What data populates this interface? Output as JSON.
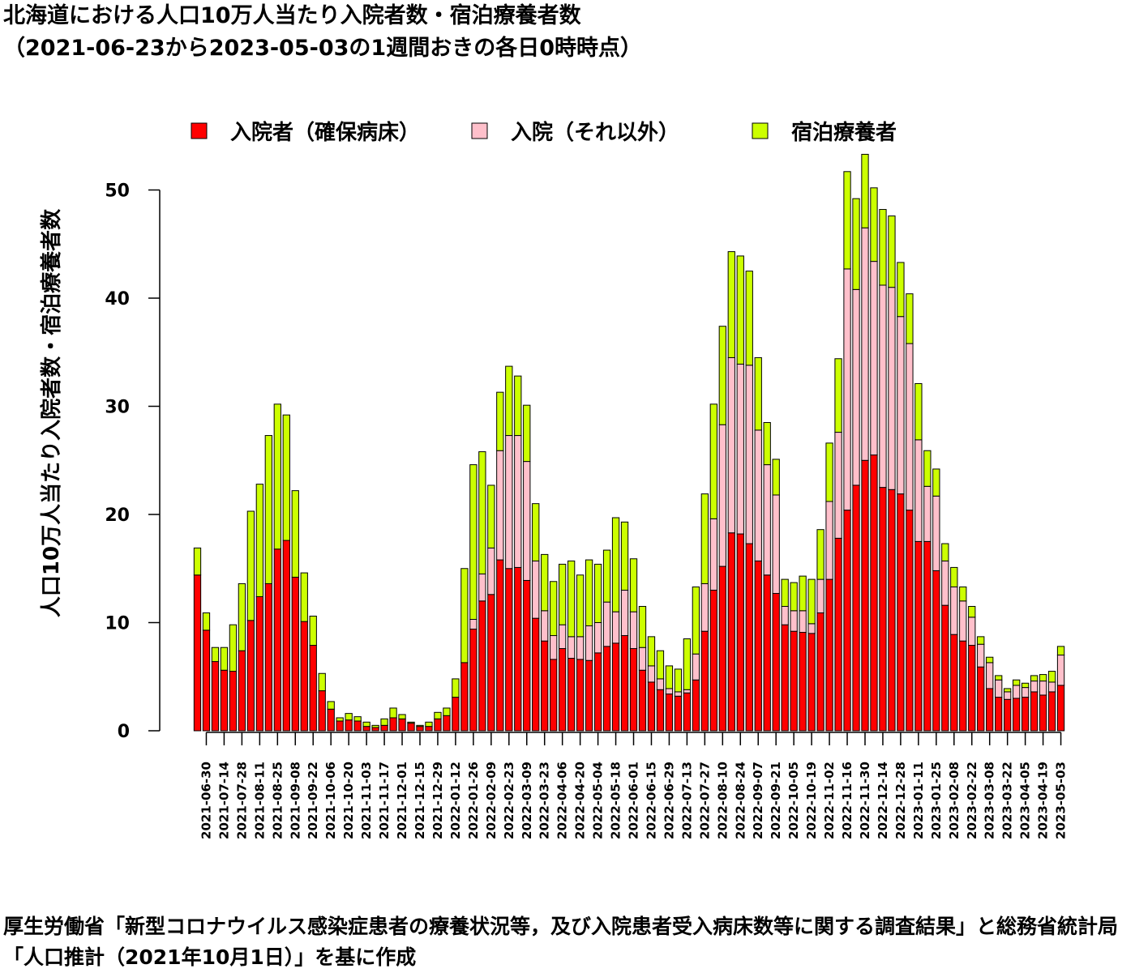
{
  "title_line1": "北海道における人口10万人当たり入院者数・宿泊療養者数",
  "title_line2": "（2021-06-23から2023-05-03の1週間おきの各日0時時点）",
  "caption": "厚生労働省「新型コロナウイルス感染症患者の療養状況等，及び入院患者受入病床数等に関する調査結果」と総務省統計局「人口推計（2021年10月1日）」を基に作成",
  "chart_data": {
    "type": "bar",
    "stacked": true,
    "title": "北海道における人口10万人当たり入院者数・宿泊療養者数",
    "ylabel": "人口10万人当たり入院者数・宿泊療養者数",
    "ylim": [
      0,
      53
    ],
    "yticks": [
      0,
      10,
      20,
      30,
      40,
      50
    ],
    "legend_position": "top",
    "categories": [
      "2021-06-23",
      "2021-06-30",
      "2021-07-07",
      "2021-07-14",
      "2021-07-21",
      "2021-07-28",
      "2021-08-04",
      "2021-08-11",
      "2021-08-18",
      "2021-08-25",
      "2021-09-01",
      "2021-09-08",
      "2021-09-15",
      "2021-09-22",
      "2021-09-29",
      "2021-10-06",
      "2021-10-13",
      "2021-10-20",
      "2021-10-27",
      "2021-11-03",
      "2021-11-10",
      "2021-11-17",
      "2021-11-24",
      "2021-12-01",
      "2021-12-08",
      "2021-12-15",
      "2021-12-22",
      "2021-12-29",
      "2022-01-05",
      "2022-01-12",
      "2022-01-19",
      "2022-01-26",
      "2022-02-02",
      "2022-02-09",
      "2022-02-16",
      "2022-02-23",
      "2022-03-02",
      "2022-03-09",
      "2022-03-16",
      "2022-03-23",
      "2022-03-30",
      "2022-04-06",
      "2022-04-13",
      "2022-04-20",
      "2022-04-27",
      "2022-05-04",
      "2022-05-11",
      "2022-05-18",
      "2022-05-25",
      "2022-06-01",
      "2022-06-08",
      "2022-06-15",
      "2022-06-22",
      "2022-06-29",
      "2022-07-06",
      "2022-07-13",
      "2022-07-20",
      "2022-07-27",
      "2022-08-03",
      "2022-08-10",
      "2022-08-17",
      "2022-08-24",
      "2022-08-31",
      "2022-09-07",
      "2022-09-14",
      "2022-09-21",
      "2022-09-28",
      "2022-10-05",
      "2022-10-12",
      "2022-10-19",
      "2022-10-26",
      "2022-11-02",
      "2022-11-09",
      "2022-11-16",
      "2022-11-23",
      "2022-11-30",
      "2022-12-07",
      "2022-12-14",
      "2022-12-21",
      "2022-12-28",
      "2023-01-04",
      "2023-01-11",
      "2023-01-18",
      "2023-01-25",
      "2023-02-01",
      "2023-02-08",
      "2023-02-15",
      "2023-02-22",
      "2023-03-01",
      "2023-03-08",
      "2023-03-15",
      "2023-03-22",
      "2023-03-29",
      "2023-04-05",
      "2023-04-12",
      "2023-04-19",
      "2023-04-26",
      "2023-05-03"
    ],
    "labeled_every": 2,
    "labeled_offset": 1,
    "series": [
      {
        "name": "入院者（確保病床）",
        "color": "#ff0000",
        "values": [
          14.4,
          9.3,
          6.4,
          5.6,
          5.5,
          7.4,
          10.2,
          12.4,
          13.6,
          16.8,
          17.6,
          14.2,
          10.1,
          7.9,
          3.7,
          2.0,
          0.9,
          1.0,
          0.9,
          0.4,
          0.3,
          0.5,
          1.2,
          1.1,
          0.7,
          0.4,
          0.4,
          1.1,
          1.4,
          3.1,
          6.3,
          9.4,
          12.0,
          12.6,
          15.8,
          15.0,
          15.1,
          13.9,
          10.4,
          8.3,
          6.6,
          7.6,
          6.7,
          6.6,
          6.5,
          7.2,
          7.8,
          8.1,
          8.8,
          7.6,
          5.6,
          4.5,
          3.8,
          3.4,
          3.2,
          3.5,
          4.7,
          9.2,
          13.0,
          15.2,
          18.3,
          18.2,
          17.3,
          15.7,
          14.4,
          12.7,
          9.8,
          9.2,
          9.1,
          9.0,
          10.9,
          14.0,
          17.8,
          20.4,
          22.7,
          25.0,
          25.5,
          22.5,
          22.3,
          21.9,
          20.4,
          17.5,
          17.5,
          14.8,
          11.6,
          8.9,
          8.3,
          7.9,
          5.9,
          3.9,
          3.1,
          2.9,
          3.0,
          3.1,
          3.6,
          3.3,
          3.6,
          4.2
        ]
      },
      {
        "name": "入院（それ以外）",
        "color": "#ffc0cb",
        "values": [
          0,
          0,
          0,
          0,
          0,
          0,
          0,
          0,
          0,
          0,
          0,
          0,
          0,
          0,
          0,
          0,
          0,
          0,
          0,
          0,
          0,
          0,
          0,
          0,
          0,
          0,
          0,
          0,
          0,
          0,
          0,
          0.9,
          2.5,
          4.3,
          10.1,
          12.3,
          12.2,
          11.0,
          5.3,
          2.8,
          2.2,
          2.2,
          2.0,
          2.1,
          3.2,
          2.8,
          4.1,
          2.9,
          4.2,
          3.4,
          2.1,
          1.5,
          1.0,
          0.5,
          0.4,
          0.3,
          2.4,
          4.4,
          6.6,
          13.1,
          16.2,
          15.7,
          16.5,
          12.1,
          10.2,
          9.1,
          1.7,
          1.9,
          2.0,
          0.9,
          3.1,
          7.2,
          9.8,
          22.3,
          18.1,
          21.5,
          17.9,
          18.7,
          18.7,
          16.4,
          15.4,
          9.4,
          5.1,
          6.9,
          4.1,
          4.4,
          3.7,
          2.6,
          2.1,
          2.4,
          1.6,
          0.7,
          1.2,
          0.9,
          1.0,
          1.3,
          0.9,
          2.8
        ]
      },
      {
        "name": "宿泊療養者",
        "color": "#ccff00",
        "values": [
          2.5,
          1.6,
          1.3,
          2.1,
          4.3,
          6.2,
          10.1,
          10.4,
          13.7,
          13.4,
          11.6,
          8.0,
          4.5,
          2.7,
          1.6,
          0.7,
          0.3,
          0.6,
          0.4,
          0.4,
          0.2,
          0.6,
          0.9,
          0.4,
          0.1,
          0.1,
          0.4,
          0.6,
          0.7,
          1.7,
          8.7,
          14.3,
          11.3,
          5.8,
          5.4,
          6.4,
          5.5,
          5.2,
          5.3,
          5.2,
          5.0,
          5.6,
          7.0,
          5.7,
          6.1,
          5.4,
          4.8,
          8.7,
          6.3,
          4.9,
          3.8,
          2.7,
          2.6,
          2.1,
          2.1,
          4.7,
          6.2,
          8.3,
          10.6,
          9.1,
          9.8,
          10.0,
          8.7,
          6.7,
          3.9,
          3.3,
          2.5,
          2.6,
          3.2,
          4.1,
          4.6,
          5.4,
          6.8,
          9.0,
          8.4,
          6.8,
          6.8,
          7.0,
          6.6,
          5.0,
          4.6,
          5.2,
          3.3,
          2.5,
          1.6,
          1.8,
          1.3,
          1.0,
          0.7,
          0.5,
          0.4,
          0.3,
          0.5,
          0.4,
          0.5,
          0.6,
          1.0,
          0.8
        ]
      }
    ]
  }
}
